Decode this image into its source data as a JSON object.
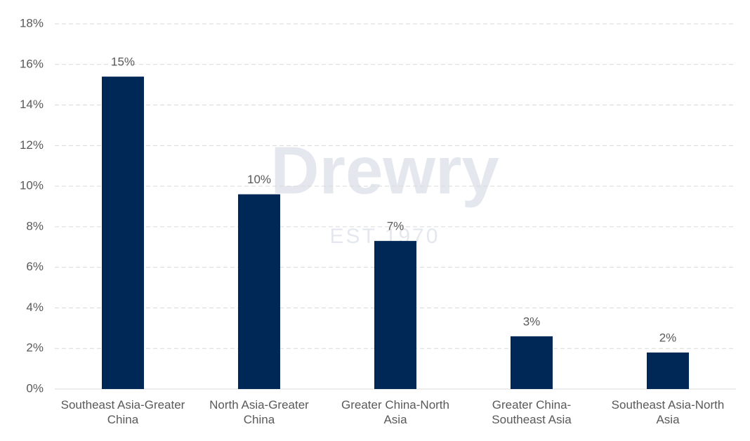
{
  "chart_data": {
    "type": "bar",
    "watermark": {
      "name": "Drewry",
      "established": "EST 1970"
    },
    "categories": [
      "Southeast Asia-Greater China",
      "North Asia-Greater China",
      "Greater China-North Asia",
      "Greater China-Southeast Asia",
      "Southeast Asia-North Asia"
    ],
    "values": [
      15.4,
      9.6,
      7.3,
      2.6,
      1.8
    ],
    "value_labels": [
      "15%",
      "10%",
      "7%",
      "3%",
      "2%"
    ],
    "color": "#002856",
    "ylim": [
      0,
      18
    ],
    "yticks": [
      {
        "value": 0,
        "label": "0%"
      },
      {
        "value": 2,
        "label": "2%"
      },
      {
        "value": 4,
        "label": "4%"
      },
      {
        "value": 6,
        "label": "6%"
      },
      {
        "value": 8,
        "label": "8%"
      },
      {
        "value": 10,
        "label": "10%"
      },
      {
        "value": 12,
        "label": "12%"
      },
      {
        "value": 14,
        "label": "14%"
      },
      {
        "value": 16,
        "label": "16%"
      },
      {
        "value": 18,
        "label": "18%"
      }
    ],
    "grid": true
  }
}
